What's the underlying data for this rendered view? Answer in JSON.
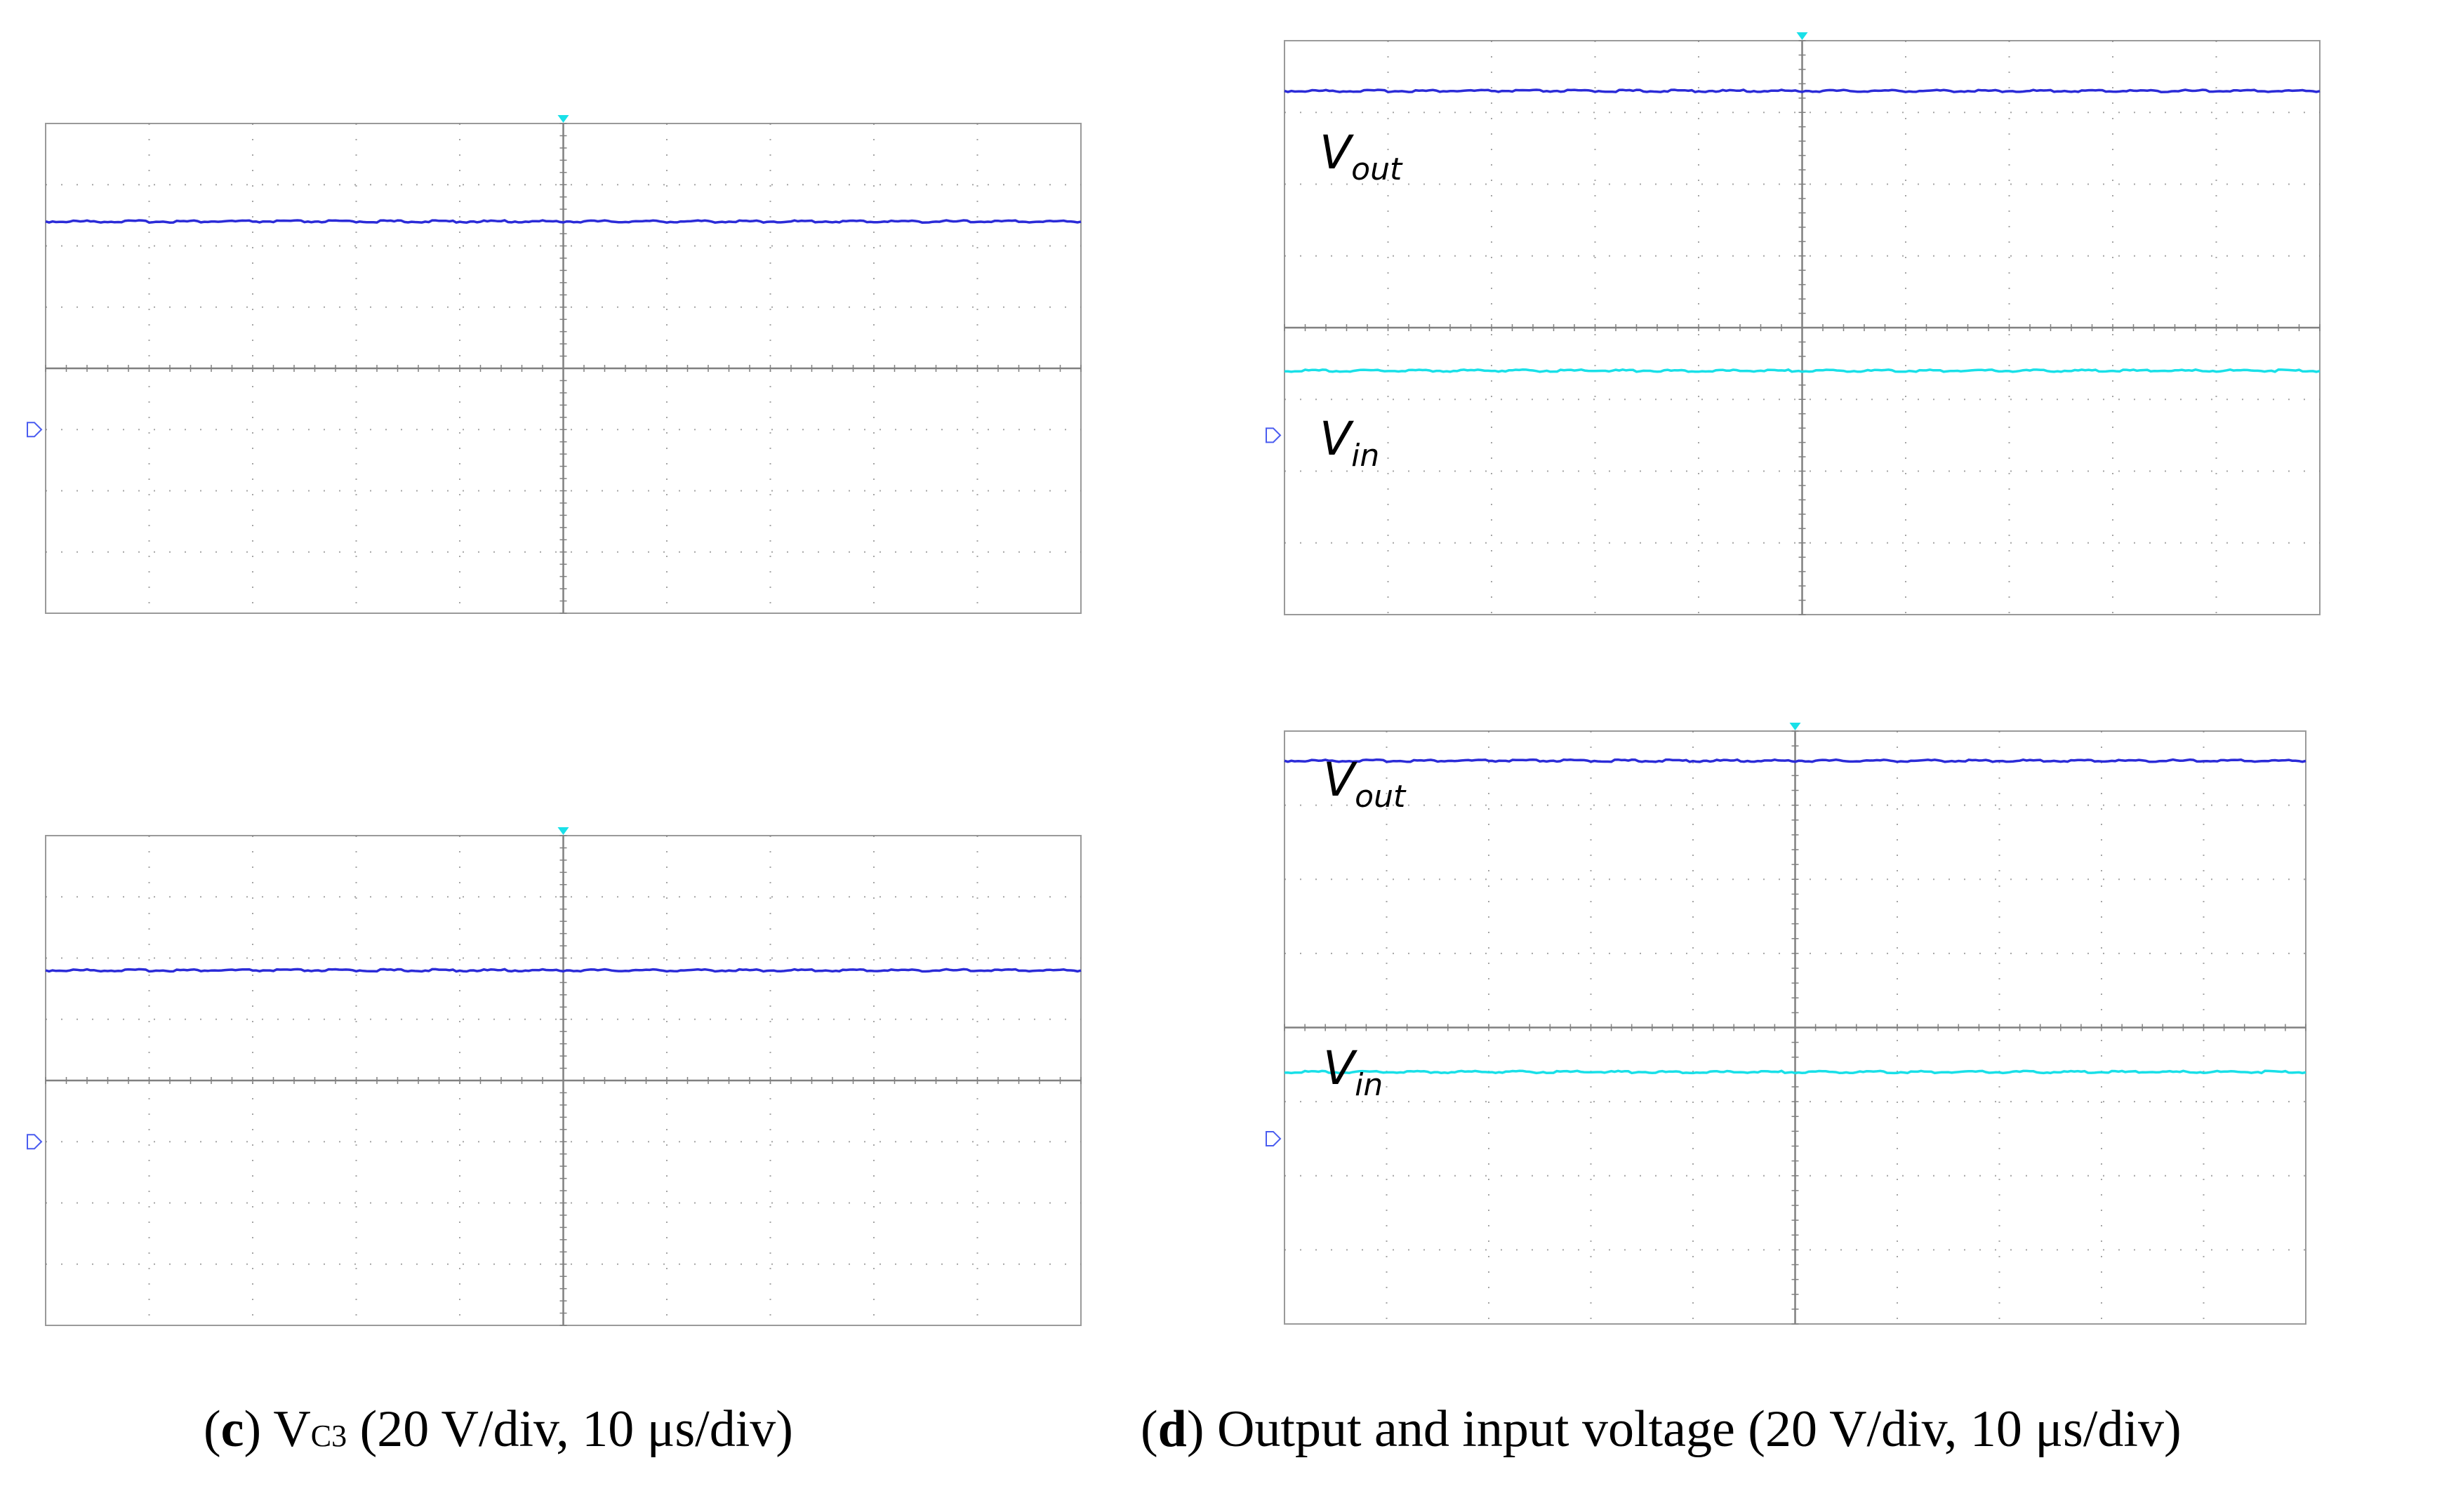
{
  "colors": {
    "grid": "#808080",
    "frame": "#9a9a9a",
    "trace_vout": "#2b2bd8",
    "trace_vin": "#19e0e8",
    "trigger": "#19e0e8",
    "ground_marker": "#4a5cf0"
  },
  "captions": {
    "c": {
      "letter": "c",
      "main": "V",
      "sub": "C3",
      "rest": " (20 V/div, 10 μs/div)"
    },
    "d": {
      "letter": "d",
      "text": " Output and input voltage (20 V/div, 10 μs/div)"
    }
  },
  "chart_data": [
    {
      "type": "line",
      "panel": "c-top",
      "grid": true,
      "x_divisions": 10,
      "y_divisions": 8,
      "ylim": [
        -4,
        4
      ],
      "ground_marker_div": -1,
      "series": [
        {
          "color": "#2b2bd8",
          "values": [
            2.4,
            2.4,
            2.4,
            2.4,
            2.4,
            2.4,
            2.4,
            2.4,
            2.4,
            2.4,
            2.4
          ]
        }
      ]
    },
    {
      "type": "line",
      "panel": "c-bottom",
      "grid": true,
      "x_divisions": 10,
      "y_divisions": 8,
      "ylim": [
        -4,
        4
      ],
      "ground_marker_div": -1,
      "series": [
        {
          "color": "#2b2bd8",
          "values": [
            1.8,
            1.8,
            1.8,
            1.8,
            1.8,
            1.8,
            1.8,
            1.8,
            1.8,
            1.8,
            1.8
          ]
        }
      ]
    },
    {
      "type": "line",
      "panel": "d-top",
      "grid": true,
      "x_divisions": 10,
      "y_divisions": 8,
      "ylim": [
        -4,
        4
      ],
      "ground_marker_div": -1.5,
      "series": [
        {
          "name": "V_out",
          "label_main": "V",
          "label_sub": "out",
          "color": "#2b2bd8",
          "values": [
            3.3,
            3.3,
            3.3,
            3.3,
            3.3,
            3.3,
            3.3,
            3.3,
            3.3,
            3.3,
            3.3
          ]
        },
        {
          "name": "V_in",
          "label_main": "V",
          "label_sub": "in",
          "color": "#19e0e8",
          "values": [
            -0.6,
            -0.6,
            -0.6,
            -0.6,
            -0.6,
            -0.6,
            -0.6,
            -0.6,
            -0.6,
            -0.6,
            -0.6
          ]
        }
      ]
    },
    {
      "type": "line",
      "panel": "d-bottom",
      "grid": true,
      "x_divisions": 10,
      "y_divisions": 8,
      "ylim": [
        -4,
        4
      ],
      "ground_marker_div": -1.5,
      "series": [
        {
          "name": "V_out",
          "label_main": "V",
          "label_sub": "out",
          "color": "#2b2bd8",
          "values": [
            3.6,
            3.6,
            3.6,
            3.6,
            3.6,
            3.6,
            3.6,
            3.6,
            3.6,
            3.6,
            3.6
          ]
        },
        {
          "name": "V_in",
          "label_main": "V",
          "label_sub": "in",
          "color": "#19e0e8",
          "values": [
            -0.6,
            -0.6,
            -0.6,
            -0.6,
            -0.6,
            -0.6,
            -0.6,
            -0.6,
            -0.6,
            -0.6,
            -0.6
          ]
        }
      ]
    }
  ]
}
